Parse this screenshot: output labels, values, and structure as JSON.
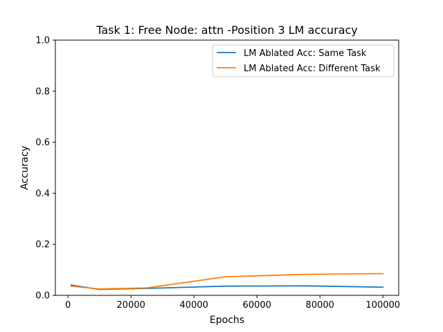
{
  "chart_data": {
    "type": "line",
    "title": "Task 1: Free Node: attn -Position 3 LM accuracy",
    "xlabel": "Epochs",
    "ylabel": "Accuracy",
    "xlim": [
      -4000,
      105000
    ],
    "ylim": [
      0,
      1.0
    ],
    "xticks": [
      0,
      20000,
      40000,
      60000,
      80000,
      100000
    ],
    "xtick_labels": [
      "0",
      "20000",
      "40000",
      "60000",
      "80000",
      "100000"
    ],
    "yticks": [
      0.0,
      0.2,
      0.4,
      0.6,
      0.8,
      1.0
    ],
    "ytick_labels": [
      "0.0",
      "0.2",
      "0.4",
      "0.6",
      "0.8",
      "1.0"
    ],
    "grid": false,
    "legend_position": "top-right",
    "series": [
      {
        "name": "LM Ablated Acc: Same Task",
        "color": "#1f77b4",
        "x": [
          1000,
          10000,
          25000,
          50000,
          75000,
          100000
        ],
        "y": [
          0.04,
          0.023,
          0.027,
          0.036,
          0.037,
          0.032
        ]
      },
      {
        "name": "LM Ablated Acc: Different Task",
        "color": "#ff7f0e",
        "x": [
          1000,
          10000,
          25000,
          50000,
          75000,
          100000
        ],
        "y": [
          0.036,
          0.025,
          0.029,
          0.073,
          0.082,
          0.085
        ]
      }
    ]
  }
}
